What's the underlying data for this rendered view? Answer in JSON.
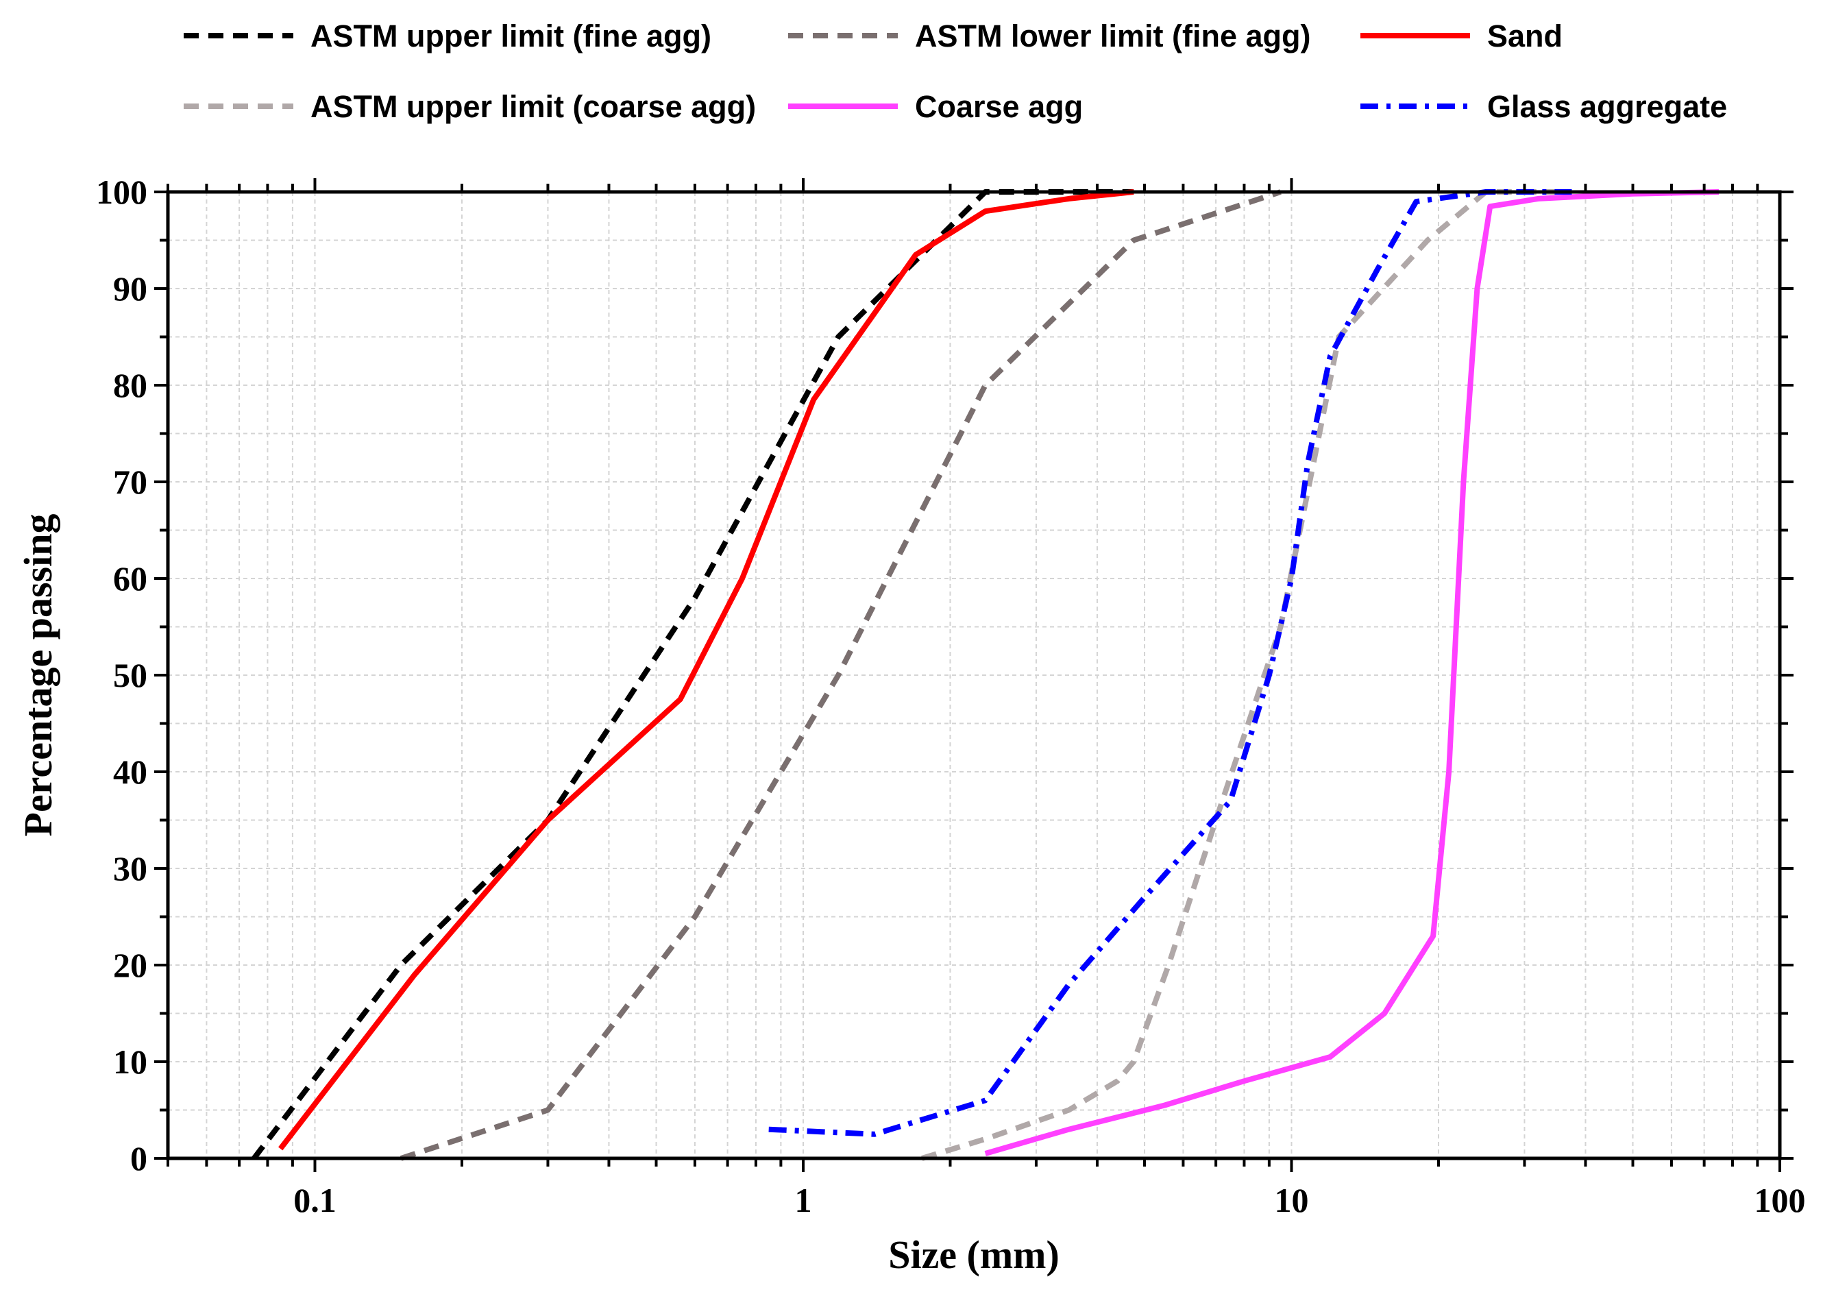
{
  "chart_data": {
    "type": "line",
    "xscale": "log",
    "xlabel": "Size (mm)",
    "ylabel": "Percentage passing",
    "xlim": [
      0.05,
      100
    ],
    "ylim": [
      0,
      100
    ],
    "x_ticks": [
      {
        "value": 0.1,
        "label": "0.1"
      },
      {
        "value": 1,
        "label": "1"
      },
      {
        "value": 10,
        "label": "10"
      },
      {
        "value": 100,
        "label": "100"
      }
    ],
    "y_ticks": [
      {
        "value": 0,
        "label": "0"
      },
      {
        "value": 10,
        "label": "10"
      },
      {
        "value": 20,
        "label": "20"
      },
      {
        "value": 30,
        "label": "30"
      },
      {
        "value": 40,
        "label": "40"
      },
      {
        "value": 50,
        "label": "50"
      },
      {
        "value": 60,
        "label": "60"
      },
      {
        "value": 70,
        "label": "70"
      },
      {
        "value": 80,
        "label": "80"
      },
      {
        "value": 90,
        "label": "90"
      },
      {
        "value": 100,
        "label": "100"
      }
    ],
    "grid": true,
    "legend_position": "top",
    "series": [
      {
        "name": "ASTM upper limit (fine agg)",
        "color": "#000000",
        "style": "dashed",
        "points": [
          [
            0.075,
            0
          ],
          [
            0.15,
            20
          ],
          [
            0.3,
            35
          ],
          [
            0.6,
            58
          ],
          [
            1.18,
            85
          ],
          [
            2.36,
            100
          ],
          [
            4.75,
            100
          ]
        ]
      },
      {
        "name": "ASTM lower limit (fine agg)",
        "color": "#7a6f6f",
        "style": "dashed",
        "points": [
          [
            0.15,
            0
          ],
          [
            0.3,
            5
          ],
          [
            0.6,
            25
          ],
          [
            1.18,
            50
          ],
          [
            2.36,
            80
          ],
          [
            4.75,
            95
          ],
          [
            9.5,
            100
          ]
        ]
      },
      {
        "name": "Sand",
        "color": "#ff0000",
        "style": "solid",
        "points": [
          [
            0.085,
            1
          ],
          [
            0.16,
            19
          ],
          [
            0.3,
            35
          ],
          [
            0.56,
            47.5
          ],
          [
            0.75,
            60
          ],
          [
            1.05,
            78.5
          ],
          [
            1.7,
            93.5
          ],
          [
            2.36,
            98
          ],
          [
            3.5,
            99.3
          ],
          [
            4.75,
            100
          ]
        ]
      },
      {
        "name": "ASTM upper limit (coarse agg)",
        "color": "#b0a8a8",
        "style": "dashed",
        "points": [
          [
            1.75,
            0
          ],
          [
            2.36,
            2
          ],
          [
            3.5,
            5
          ],
          [
            4.4,
            8
          ],
          [
            4.75,
            10
          ],
          [
            5.6,
            20
          ],
          [
            7,
            35
          ],
          [
            9.5,
            55
          ],
          [
            12.5,
            85
          ],
          [
            19,
            95
          ],
          [
            25,
            100
          ],
          [
            37.5,
            100
          ]
        ]
      },
      {
        "name": "Coarse agg",
        "color": "#ff40ff",
        "style": "solid",
        "points": [
          [
            2.36,
            0.5
          ],
          [
            3.5,
            3
          ],
          [
            5.5,
            5.5
          ],
          [
            8,
            8
          ],
          [
            12,
            10.5
          ],
          [
            15.5,
            15
          ],
          [
            19.5,
            23
          ],
          [
            21,
            40
          ],
          [
            22.5,
            70
          ],
          [
            24,
            90
          ],
          [
            25.5,
            98.5
          ],
          [
            32,
            99.3
          ],
          [
            50,
            99.8
          ],
          [
            75,
            100
          ]
        ]
      },
      {
        "name": "Glass aggregate",
        "color": "#0000ff",
        "style": "dashdot",
        "points": [
          [
            0.85,
            3
          ],
          [
            1.4,
            2.5
          ],
          [
            2.36,
            6
          ],
          [
            3.5,
            18
          ],
          [
            5,
            27
          ],
          [
            7.5,
            37
          ],
          [
            9,
            50
          ],
          [
            10,
            60
          ],
          [
            10.8,
            72
          ],
          [
            12,
            83
          ],
          [
            15,
            92
          ],
          [
            18,
            99
          ],
          [
            25,
            100
          ],
          [
            37.5,
            100
          ]
        ]
      }
    ],
    "legend_entries": [
      "ASTM upper limit (fine agg)",
      "ASTM lower limit (fine agg)",
      "Sand",
      "ASTM upper limit (coarse agg)",
      "Coarse agg",
      "Glass aggregate"
    ]
  }
}
